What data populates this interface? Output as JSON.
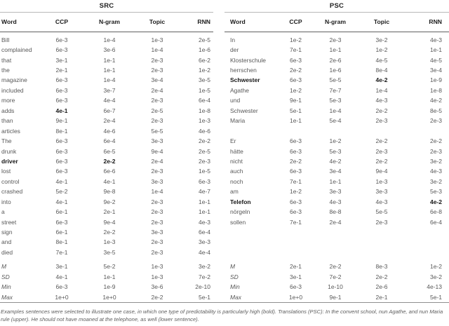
{
  "footnote": "Examples sentences were selected to illustrate one case, in which one type of predictability is particularly high (bold). Translations (PSC): In the convent school, nun Agathe, and nun Maria rule (upper). He should not have moaned at the telephone, as well (lower sentence).",
  "tables": [
    {
      "title": "SRC",
      "columns": [
        "Word",
        "CCP",
        "N-gram",
        "Topic",
        "RNN"
      ],
      "rows": [
        {
          "cells": [
            "Bill",
            "6e-3",
            "1e-4",
            "1e-3",
            "2e-5"
          ],
          "bold": []
        },
        {
          "cells": [
            "complained",
            "6e-3",
            "3e-6",
            "1e-4",
            "1e-6"
          ],
          "bold": []
        },
        {
          "cells": [
            "that",
            "3e-1",
            "1e-1",
            "2e-3",
            "6e-2"
          ],
          "bold": []
        },
        {
          "cells": [
            "the",
            "2e-1",
            "1e-1",
            "2e-3",
            "1e-2"
          ],
          "bold": []
        },
        {
          "cells": [
            "magazine",
            "6e-3",
            "1e-4",
            "3e-4",
            "3e-5"
          ],
          "bold": []
        },
        {
          "cells": [
            "included",
            "6e-3",
            "3e-7",
            "2e-4",
            "1e-5"
          ],
          "bold": []
        },
        {
          "cells": [
            "more",
            "6e-3",
            "4e-4",
            "2e-3",
            "6e-4"
          ],
          "bold": []
        },
        {
          "cells": [
            "adds",
            "4e-1",
            "6e-7",
            "2e-5",
            "1e-8"
          ],
          "bold": [
            1
          ]
        },
        {
          "cells": [
            "than",
            "9e-1",
            "2e-4",
            "2e-3",
            "1e-3"
          ],
          "bold": []
        },
        {
          "cells": [
            "articles",
            "8e-1",
            "4e-6",
            "5e-5",
            "4e-6"
          ],
          "bold": []
        },
        {
          "cells": [
            "The",
            "6e-3",
            "6e-4",
            "3e-3",
            "2e-2"
          ],
          "bold": []
        },
        {
          "cells": [
            "drunk",
            "6e-3",
            "6e-5",
            "9e-4",
            "2e-5"
          ],
          "bold": []
        },
        {
          "cells": [
            "driver",
            "6e-3",
            "2e-2",
            "2e-4",
            "2e-3"
          ],
          "bold": [
            0,
            2
          ]
        },
        {
          "cells": [
            "lost",
            "6e-3",
            "6e-6",
            "2e-3",
            "1e-5"
          ],
          "bold": []
        },
        {
          "cells": [
            "control",
            "4e-1",
            "4e-1",
            "3e-3",
            "6e-3"
          ],
          "bold": []
        },
        {
          "cells": [
            "crashed",
            "5e-2",
            "9e-8",
            "1e-4",
            "4e-7"
          ],
          "bold": []
        },
        {
          "cells": [
            "into",
            "4e-1",
            "9e-2",
            "2e-3",
            "1e-1"
          ],
          "bold": []
        },
        {
          "cells": [
            "a",
            "6e-1",
            "2e-1",
            "2e-3",
            "1e-1"
          ],
          "bold": []
        },
        {
          "cells": [
            "street",
            "6e-3",
            "9e-4",
            "2e-3",
            "4e-3"
          ],
          "bold": []
        },
        {
          "cells": [
            "sign",
            "6e-1",
            "2e-2",
            "3e-3",
            "6e-4"
          ],
          "bold": []
        },
        {
          "cells": [
            "and",
            "8e-1",
            "1e-3",
            "2e-3",
            "3e-3"
          ],
          "bold": []
        },
        {
          "cells": [
            "died",
            "7e-1",
            "3e-5",
            "2e-3",
            "4e-4"
          ],
          "bold": []
        }
      ],
      "stats": [
        {
          "cells": [
            "M",
            "3e-1",
            "5e-2",
            "1e-3",
            "3e-2"
          ],
          "bold": []
        },
        {
          "cells": [
            "SD",
            "4e-1",
            "1e-1",
            "1e-3",
            "7e-2"
          ],
          "bold": []
        },
        {
          "cells": [
            "Min",
            "6e-3",
            "1e-9",
            "3e-6",
            "2e-10"
          ],
          "bold": []
        },
        {
          "cells": [
            "Max",
            "1e+0",
            "1e+0",
            "2e-2",
            "5e-1"
          ],
          "bold": []
        }
      ]
    },
    {
      "title": "PSC",
      "columns": [
        "Word",
        "CCP",
        "N-gram",
        "Topic",
        "RNN"
      ],
      "rows": [
        {
          "cells": [
            "In",
            "1e-2",
            "2e-3",
            "3e-2",
            "4e-3"
          ],
          "bold": []
        },
        {
          "cells": [
            "der",
            "7e-1",
            "1e-1",
            "1e-2",
            "1e-1"
          ],
          "bold": []
        },
        {
          "cells": [
            "Klosterschule",
            "6e-3",
            "2e-6",
            "4e-5",
            "4e-5"
          ],
          "bold": []
        },
        {
          "cells": [
            "herrschen",
            "2e-2",
            "1e-6",
            "8e-4",
            "3e-4"
          ],
          "bold": []
        },
        {
          "cells": [
            "Schwester",
            "6e-3",
            "5e-5",
            "4e-2",
            "1e-9"
          ],
          "bold": [
            0,
            3
          ]
        },
        {
          "cells": [
            "Agathe",
            "1e-2",
            "7e-7",
            "1e-4",
            "1e-8"
          ],
          "bold": []
        },
        {
          "cells": [
            "und",
            "9e-1",
            "5e-3",
            "4e-3",
            "4e-2"
          ],
          "bold": []
        },
        {
          "cells": [
            "Schwester",
            "5e-1",
            "1e-4",
            "2e-2",
            "8e-5"
          ],
          "bold": []
        },
        {
          "cells": [
            "Maria",
            "1e-1",
            "5e-4",
            "2e-3",
            "2e-3"
          ],
          "bold": []
        },
        {
          "cells": [
            "",
            "",
            "",
            "",
            ""
          ],
          "bold": []
        },
        {
          "cells": [
            "Er",
            "6e-3",
            "1e-2",
            "2e-2",
            "2e-2"
          ],
          "bold": []
        },
        {
          "cells": [
            "hätte",
            "6e-3",
            "5e-3",
            "2e-3",
            "2e-3"
          ],
          "bold": []
        },
        {
          "cells": [
            "nicht",
            "2e-2",
            "4e-2",
            "2e-2",
            "3e-2"
          ],
          "bold": []
        },
        {
          "cells": [
            "auch",
            "6e-3",
            "3e-4",
            "9e-4",
            "4e-3"
          ],
          "bold": []
        },
        {
          "cells": [
            "noch",
            "7e-1",
            "1e-1",
            "1e-3",
            "3e-2"
          ],
          "bold": []
        },
        {
          "cells": [
            "am",
            "1e-2",
            "3e-3",
            "3e-3",
            "5e-3"
          ],
          "bold": []
        },
        {
          "cells": [
            "Telefon",
            "6e-3",
            "4e-3",
            "4e-3",
            "4e-2"
          ],
          "bold": [
            0,
            4
          ]
        },
        {
          "cells": [
            "nörgeln",
            "6e-3",
            "8e-8",
            "5e-5",
            "6e-8"
          ],
          "bold": []
        },
        {
          "cells": [
            "sollen",
            "7e-1",
            "2e-4",
            "2e-3",
            "6e-4"
          ],
          "bold": []
        },
        {
          "cells": [
            "",
            "",
            "",
            "",
            ""
          ],
          "bold": []
        },
        {
          "cells": [
            "",
            "",
            "",
            "",
            ""
          ],
          "bold": []
        },
        {
          "cells": [
            "",
            "",
            "",
            "",
            ""
          ],
          "bold": []
        }
      ],
      "stats": [
        {
          "cells": [
            "M",
            "2e-1",
            "2e-2",
            "8e-3",
            "1e-2"
          ],
          "bold": []
        },
        {
          "cells": [
            "SD",
            "3e-1",
            "7e-2",
            "2e-2",
            "3e-2"
          ],
          "bold": []
        },
        {
          "cells": [
            "Min",
            "6e-3",
            "1e-10",
            "2e-6",
            "4e-13"
          ],
          "bold": []
        },
        {
          "cells": [
            "Max",
            "1e+0",
            "9e-1",
            "2e-1",
            "5e-1"
          ],
          "bold": []
        }
      ]
    }
  ]
}
